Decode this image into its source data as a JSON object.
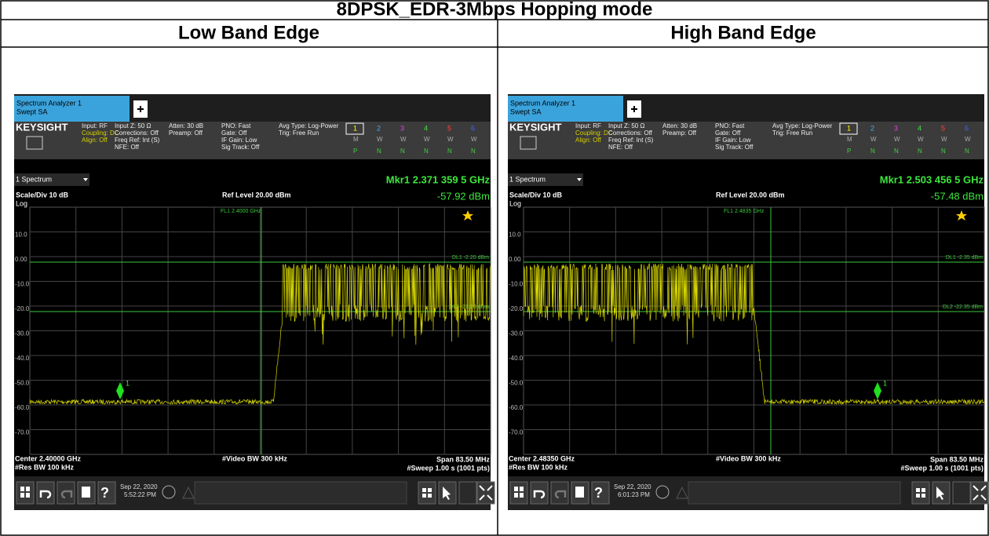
{
  "title": "8DPSK_EDR-3Mbps Hopping mode",
  "columns": [
    "Low Band Edge",
    "High Band Edge"
  ],
  "screens": [
    {
      "tab": [
        "Spectrum Analyzer 1",
        "Swept SA"
      ],
      "brand": "KEYSIGHT",
      "info": [
        [
          "Input: RF",
          "Coupling: DC",
          "Align: Off"
        ],
        [
          "Input Z: 50 Ω",
          "Corrections: Off",
          "Freq Ref: Int (S)",
          "NFE: Off"
        ],
        [
          "Atten: 30 dB",
          "Preamp: Off"
        ],
        [
          "PNO: Fast",
          "Gate: Off",
          "IF Gain: Low",
          "Sig Track: Off"
        ],
        [
          "Avg Type: Log-Power",
          "Trig: Free Run"
        ]
      ],
      "trace_numbers": [
        "1",
        "2",
        "3",
        "4",
        "5",
        "6"
      ],
      "trace_types": [
        "M",
        "W",
        "W",
        "W",
        "W",
        "W"
      ],
      "trace_detectors": [
        "P",
        "N",
        "N",
        "N",
        "N",
        "N"
      ],
      "spectrum": "1 Spectrum",
      "marker_readout": "Mkr1  2.371 359 5 GHz",
      "marker_level": "-57.92 dBm",
      "scale": "Scale/Div 10 dB",
      "ref_level": "Ref Level 20.00 dBm",
      "log": "Log",
      "y_labels": [
        "10.0",
        "0.00",
        "-10.0",
        "-20.0",
        "-30.0",
        "-40.0",
        "-50.0",
        "-60.0",
        "-70.0"
      ],
      "fl1": "FL1 2.4000 GHz",
      "dl1": "DL1 -2.20 dBm",
      "dl2": "DL2 -22.20 dBm",
      "marker_label": "1",
      "center": "Center 2.40000 GHz",
      "res_bw": "#Res BW 100 kHz",
      "video_bw": "#Video BW 300 kHz",
      "span": "Span 83.50 MHz",
      "sweep": "#Sweep 1.00 s (1001 pts)",
      "date": "Sep 22, 2020",
      "time": "5:52:22 PM"
    },
    {
      "tab": [
        "Spectrum Analyzer 1",
        "Swept SA"
      ],
      "brand": "KEYSIGHT",
      "info": [
        [
          "Input: RF",
          "Coupling: DC",
          "Align: Off"
        ],
        [
          "Input Z: 50 Ω",
          "Corrections: Off",
          "Freq Ref: Int (S)",
          "NFE: Off"
        ],
        [
          "Atten: 30 dB",
          "Preamp: Off"
        ],
        [
          "PNO: Fast",
          "Gate: Off",
          "IF Gain: Low",
          "Sig Track: Off"
        ],
        [
          "Avg Type: Log-Power",
          "Trig: Free Run"
        ]
      ],
      "trace_numbers": [
        "1",
        "2",
        "3",
        "4",
        "5",
        "6"
      ],
      "trace_types": [
        "M",
        "W",
        "W",
        "W",
        "W",
        "W"
      ],
      "trace_detectors": [
        "P",
        "N",
        "N",
        "N",
        "N",
        "N"
      ],
      "spectrum": "1 Spectrum",
      "marker_readout": "Mkr1  2.503 456 5 GHz",
      "marker_level": "-57.48 dBm",
      "scale": "Scale/Div 10 dB",
      "ref_level": "Ref Level 20.00 dBm",
      "log": "Log",
      "y_labels": [
        "10.0",
        "0.00",
        "-10.0",
        "-20.0",
        "-30.0",
        "-40.0",
        "-50.0",
        "-60.0",
        "-70.0"
      ],
      "fl1": "FL1 2.4835 GHz",
      "dl1": "DL1 -2.35 dBm",
      "dl2": "DL2 -22.35 dBm",
      "marker_label": "1",
      "center": "Center 2.48350 GHz",
      "res_bw": "#Res BW 100 kHz",
      "video_bw": "#Video BW 300 kHz",
      "span": "Span 83.50 MHz",
      "sweep": "#Sweep 1.00 s (1001 pts)",
      "date": "Sep 22, 2020",
      "time": "6:01:23 PM"
    }
  ]
}
